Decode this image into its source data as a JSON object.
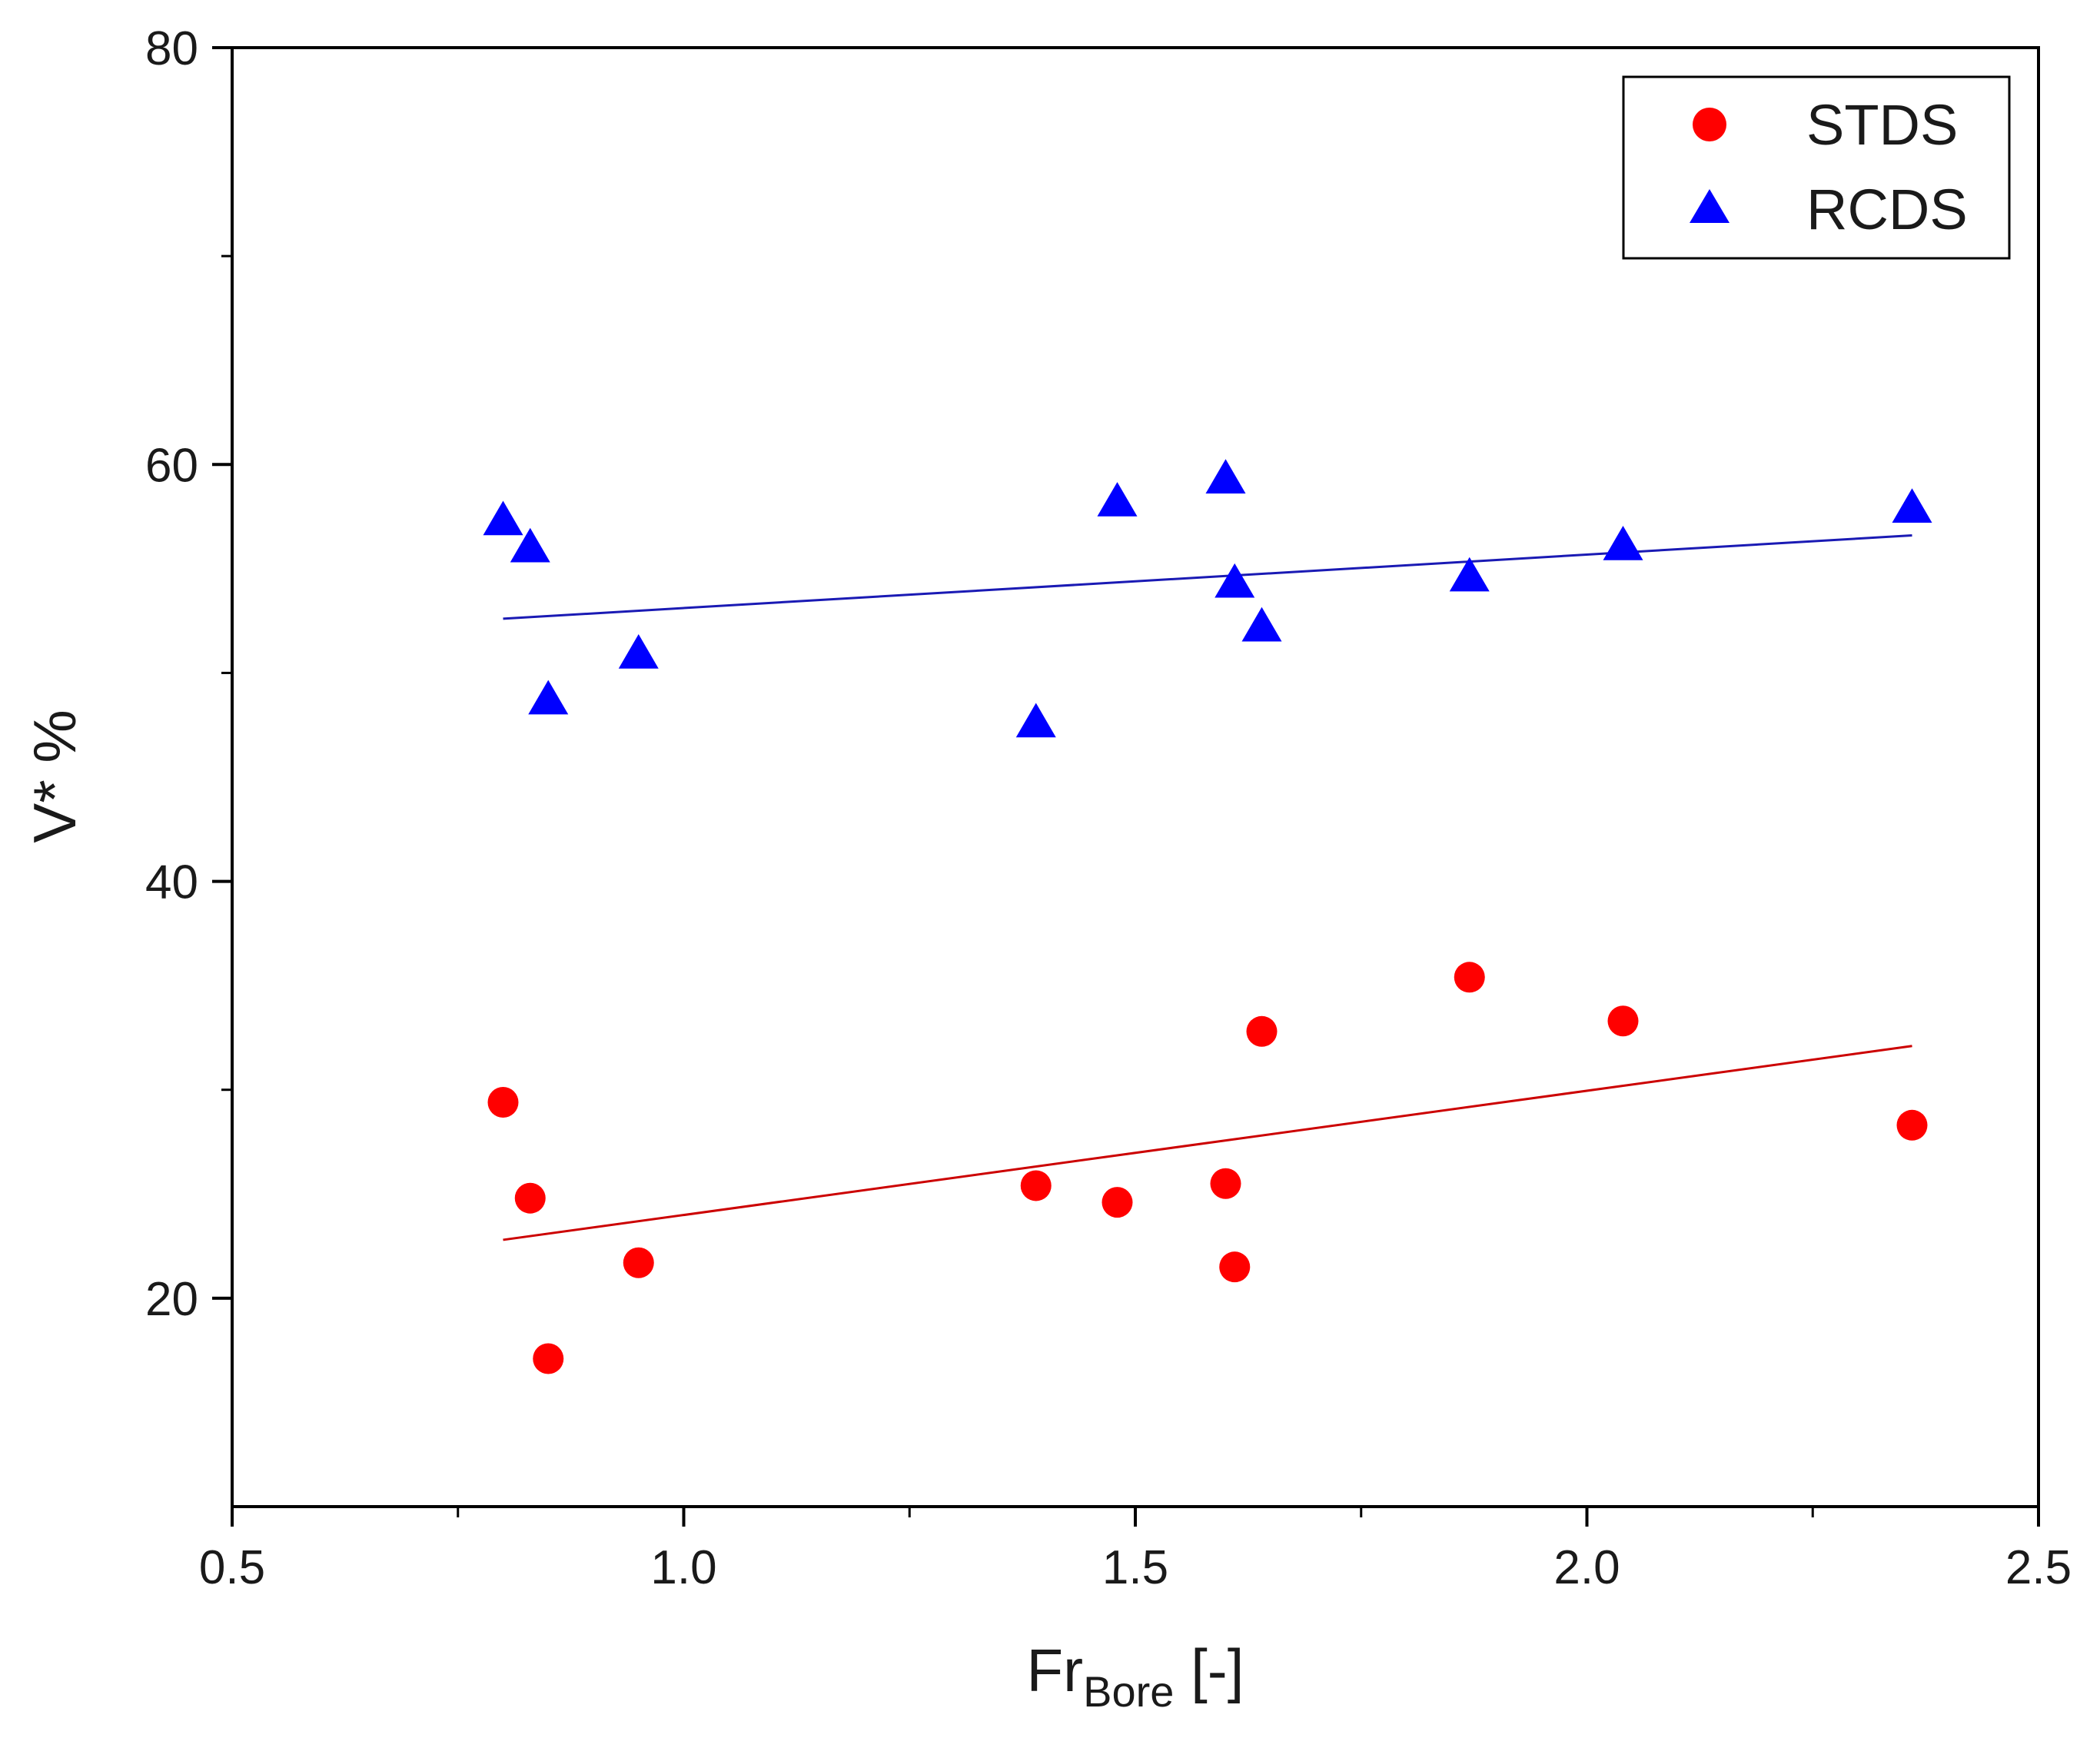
{
  "chart_data": {
    "type": "scatter",
    "title": "",
    "xlabel": "Fr",
    "xlabel_subscript": "Bore",
    "xlabel_suffix": " [-]",
    "ylabel": "V* %",
    "xlim": [
      0.5,
      2.5
    ],
    "ylim": [
      10,
      80
    ],
    "xticks": [
      0.5,
      1.0,
      1.5,
      2.0,
      2.5
    ],
    "xtick_labels": [
      "0.5",
      "1.0",
      "1.5",
      "2.0",
      "2.5"
    ],
    "yticks": [
      20,
      40,
      60,
      80
    ],
    "ytick_labels": [
      "20",
      "40",
      "60",
      "80"
    ],
    "grid": false,
    "legend_position": "top-right",
    "series": [
      {
        "name": "STDS",
        "marker": "circle",
        "color": "#ff0000",
        "x": [
          0.8,
          0.83,
          0.85,
          0.95,
          1.39,
          1.48,
          1.6,
          1.61,
          1.64,
          1.87,
          2.04,
          2.36
        ],
        "y": [
          29.4,
          24.8,
          17.1,
          21.7,
          25.4,
          24.6,
          25.5,
          21.5,
          32.8,
          35.4,
          33.3,
          28.3
        ],
        "trendline": {
          "x": [
            0.8,
            2.36
          ],
          "y": [
            22.8,
            32.1
          ],
          "color": "#cc0000"
        }
      },
      {
        "name": "RCDS",
        "marker": "triangle",
        "color": "#0000ff",
        "x": [
          0.8,
          0.83,
          0.85,
          0.95,
          1.39,
          1.48,
          1.6,
          1.61,
          1.64,
          1.87,
          2.04,
          2.36
        ],
        "y": [
          57.3,
          56.0,
          48.7,
          50.9,
          47.6,
          58.2,
          59.3,
          54.3,
          52.2,
          54.6,
          56.1,
          57.9
        ],
        "trendline": {
          "x": [
            0.8,
            2.36
          ],
          "y": [
            52.6,
            56.6
          ],
          "color": "#1a1ab4"
        }
      }
    ]
  }
}
